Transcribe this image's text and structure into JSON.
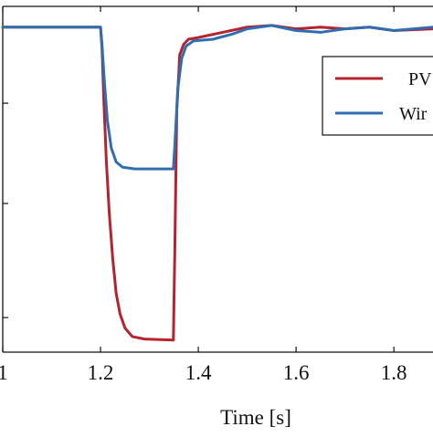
{
  "chart_data": {
    "type": "line",
    "xlabel": "Time [s]",
    "ylabel": "",
    "xlim": [
      1.0,
      1.88
    ],
    "ylim": [
      0.0,
      1.0
    ],
    "xticks": [
      1.0,
      1.2,
      1.4,
      1.6,
      1.8
    ],
    "xtick_labels": [
      "1",
      "1.2",
      "1.4",
      "1.6",
      "1.8"
    ],
    "yticks": [
      0.1,
      0.43,
      0.72
    ],
    "grid": false,
    "legend": {
      "placement": "top-right",
      "entries": [
        {
          "label": "PV",
          "color": "#b5232f"
        },
        {
          "label": "Wir",
          "color": "#2f6fb0"
        }
      ]
    },
    "series": [
      {
        "name": "PV",
        "color": "#b5232f",
        "points": [
          [
            1.0,
            0.94
          ],
          [
            1.2,
            0.94
          ],
          [
            1.203,
            0.88
          ],
          [
            1.207,
            0.72
          ],
          [
            1.212,
            0.55
          ],
          [
            1.218,
            0.4
          ],
          [
            1.225,
            0.27
          ],
          [
            1.232,
            0.17
          ],
          [
            1.24,
            0.11
          ],
          [
            1.25,
            0.07
          ],
          [
            1.265,
            0.045
          ],
          [
            1.29,
            0.038
          ],
          [
            1.349,
            0.035
          ],
          [
            1.352,
            0.3
          ],
          [
            1.356,
            0.7
          ],
          [
            1.362,
            0.86
          ],
          [
            1.37,
            0.89
          ],
          [
            1.38,
            0.905
          ],
          [
            1.4,
            0.91
          ],
          [
            1.45,
            0.925
          ],
          [
            1.5,
            0.94
          ],
          [
            1.55,
            0.945
          ],
          [
            1.6,
            0.935
          ],
          [
            1.65,
            0.94
          ],
          [
            1.7,
            0.935
          ],
          [
            1.75,
            0.94
          ],
          [
            1.8,
            0.93
          ],
          [
            1.88,
            0.935
          ]
        ]
      },
      {
        "name": "Wir",
        "color": "#2f6fb0",
        "points": [
          [
            1.0,
            0.94
          ],
          [
            1.2,
            0.94
          ],
          [
            1.203,
            0.89
          ],
          [
            1.208,
            0.78
          ],
          [
            1.214,
            0.67
          ],
          [
            1.222,
            0.59
          ],
          [
            1.232,
            0.55
          ],
          [
            1.245,
            0.535
          ],
          [
            1.27,
            0.53
          ],
          [
            1.349,
            0.53
          ],
          [
            1.352,
            0.6
          ],
          [
            1.358,
            0.76
          ],
          [
            1.366,
            0.85
          ],
          [
            1.375,
            0.885
          ],
          [
            1.39,
            0.9
          ],
          [
            1.43,
            0.905
          ],
          [
            1.47,
            0.92
          ],
          [
            1.5,
            0.935
          ],
          [
            1.55,
            0.945
          ],
          [
            1.6,
            0.93
          ],
          [
            1.65,
            0.925
          ],
          [
            1.7,
            0.935
          ],
          [
            1.75,
            0.94
          ],
          [
            1.8,
            0.93
          ],
          [
            1.88,
            0.94
          ]
        ]
      }
    ]
  }
}
